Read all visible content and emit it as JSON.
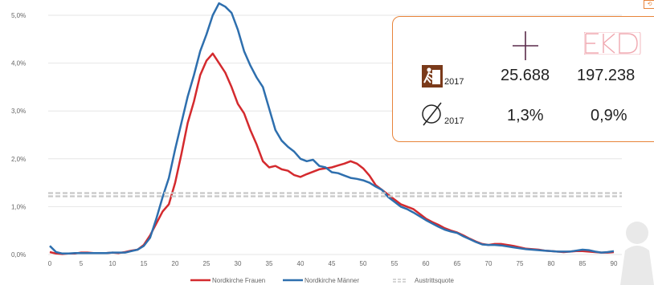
{
  "chart_data": {
    "type": "line",
    "x": [
      0,
      1,
      2,
      3,
      4,
      5,
      6,
      7,
      8,
      9,
      10,
      11,
      12,
      13,
      14,
      15,
      16,
      17,
      18,
      19,
      20,
      21,
      22,
      23,
      24,
      25,
      26,
      27,
      28,
      29,
      30,
      31,
      32,
      33,
      34,
      35,
      36,
      37,
      38,
      39,
      40,
      41,
      42,
      43,
      44,
      45,
      46,
      47,
      48,
      49,
      50,
      51,
      52,
      53,
      54,
      55,
      56,
      57,
      58,
      59,
      60,
      61,
      62,
      63,
      64,
      65,
      66,
      67,
      68,
      69,
      70,
      71,
      72,
      73,
      74,
      75,
      76,
      77,
      78,
      79,
      80,
      81,
      82,
      83,
      84,
      85,
      86,
      87,
      88,
      89,
      90
    ],
    "series": [
      {
        "name": "Nordkirche Frauen",
        "color": "#d42a2e",
        "values": [
          0.05,
          0.02,
          0.01,
          0.02,
          0.02,
          0.04,
          0.04,
          0.03,
          0.03,
          0.03,
          0.04,
          0.03,
          0.05,
          0.08,
          0.1,
          0.2,
          0.4,
          0.65,
          0.9,
          1.05,
          1.5,
          2.1,
          2.75,
          3.2,
          3.75,
          4.05,
          4.2,
          4.0,
          3.8,
          3.5,
          3.15,
          2.95,
          2.6,
          2.3,
          1.95,
          1.82,
          1.85,
          1.78,
          1.75,
          1.66,
          1.62,
          1.68,
          1.73,
          1.78,
          1.8,
          1.82,
          1.86,
          1.9,
          1.95,
          1.9,
          1.8,
          1.65,
          1.45,
          1.35,
          1.25,
          1.15,
          1.05,
          1.0,
          0.95,
          0.85,
          0.75,
          0.68,
          0.62,
          0.55,
          0.5,
          0.46,
          0.4,
          0.33,
          0.27,
          0.22,
          0.2,
          0.22,
          0.22,
          0.2,
          0.18,
          0.15,
          0.12,
          0.11,
          0.1,
          0.08,
          0.07,
          0.06,
          0.05,
          0.06,
          0.07,
          0.07,
          0.06,
          0.05,
          0.04,
          0.04,
          0.05
        ]
      },
      {
        "name": "Nordkirche Männer",
        "color": "#2e6fae",
        "values": [
          0.18,
          0.05,
          0.02,
          0.02,
          0.03,
          0.03,
          0.03,
          0.03,
          0.03,
          0.03,
          0.04,
          0.04,
          0.04,
          0.07,
          0.1,
          0.18,
          0.35,
          0.75,
          1.2,
          1.6,
          2.2,
          2.75,
          3.3,
          3.75,
          4.25,
          4.6,
          5.0,
          5.25,
          5.18,
          5.05,
          4.7,
          4.25,
          3.95,
          3.7,
          3.5,
          3.05,
          2.6,
          2.38,
          2.25,
          2.15,
          2.0,
          1.95,
          1.98,
          1.85,
          1.82,
          1.72,
          1.7,
          1.65,
          1.6,
          1.58,
          1.55,
          1.5,
          1.42,
          1.35,
          1.2,
          1.1,
          1.0,
          0.95,
          0.88,
          0.8,
          0.72,
          0.65,
          0.58,
          0.52,
          0.48,
          0.45,
          0.38,
          0.32,
          0.26,
          0.21,
          0.2,
          0.2,
          0.19,
          0.17,
          0.15,
          0.13,
          0.11,
          0.1,
          0.09,
          0.08,
          0.07,
          0.06,
          0.06,
          0.06,
          0.08,
          0.1,
          0.09,
          0.06,
          0.04,
          0.05,
          0.07
        ]
      },
      {
        "name": "Austrittsquote",
        "color": "#c8c8c8",
        "dashed": true,
        "constant": 1.25
      }
    ],
    "xticks": [
      "0",
      "5",
      "10",
      "15",
      "20",
      "25",
      "30",
      "35",
      "40",
      "45",
      "50",
      "55",
      "60",
      "65",
      "70",
      "75",
      "80",
      "85",
      "90"
    ],
    "yticks": [
      "0,0%",
      "1,0%",
      "2,0%",
      "3,0%",
      "4,0%",
      "5,0%"
    ],
    "xlim": [
      0,
      90
    ],
    "ylim": [
      0,
      5.0
    ],
    "grid": true,
    "legend": "bottom"
  },
  "legend": {
    "frauen": "Nordkirche Frauen",
    "maenner": "Nordkirche Männer",
    "quote": "Austrittsquote"
  },
  "infobox": {
    "row1_sub": "2017",
    "row1_val_cross": "25.688",
    "row1_val_ekd": "197.238",
    "row2_sub": "2017",
    "row2_val_cross": "1,3%",
    "row2_val_ekd": "0,9%",
    "icons": [
      "cross-icon",
      "ekd-logo",
      "exit-sign-icon",
      "average-symbol-icon"
    ],
    "accent": "#e8843a"
  }
}
